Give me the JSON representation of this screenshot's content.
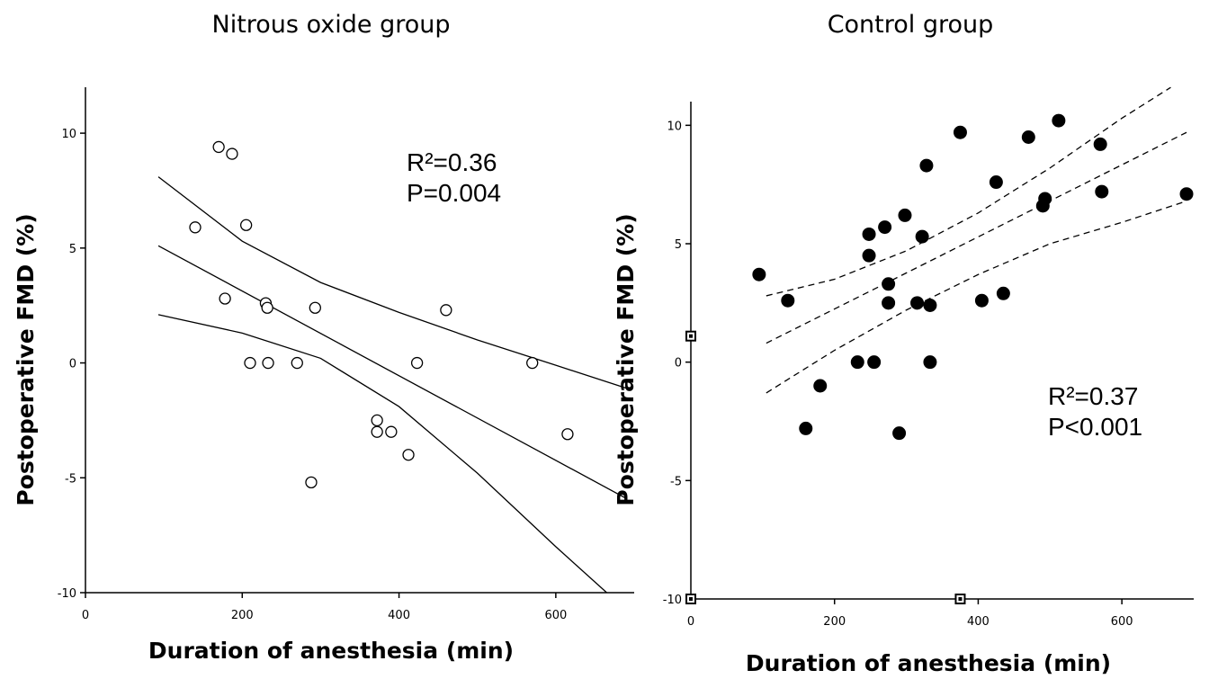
{
  "chart_data": [
    {
      "type": "scatter",
      "title": "Nitrous oxide group",
      "xlabel": "Duration of anesthesia (min)",
      "ylabel": "Postoperative FMD (%)",
      "xlim": [
        0,
        700
      ],
      "ylim": [
        -10,
        12
      ],
      "xticks": [
        "0",
        "200",
        "400",
        "600"
      ],
      "yticks": [
        "-10",
        "-5",
        "0",
        "5",
        "10"
      ],
      "marker": "open-circle",
      "grid": false,
      "points": [
        {
          "x": 170,
          "y": 9.4
        },
        {
          "x": 187,
          "y": 9.1
        },
        {
          "x": 140,
          "y": 5.9
        },
        {
          "x": 205,
          "y": 6.0
        },
        {
          "x": 178,
          "y": 2.8
        },
        {
          "x": 230,
          "y": 2.6
        },
        {
          "x": 232,
          "y": 2.4
        },
        {
          "x": 293,
          "y": 2.4
        },
        {
          "x": 460,
          "y": 2.3
        },
        {
          "x": 210,
          "y": 0.0
        },
        {
          "x": 233,
          "y": 0.0
        },
        {
          "x": 270,
          "y": 0.0
        },
        {
          "x": 423,
          "y": 0.0
        },
        {
          "x": 570,
          "y": 0.0
        },
        {
          "x": 372,
          "y": -2.5
        },
        {
          "x": 372,
          "y": -3.0
        },
        {
          "x": 390,
          "y": -3.0
        },
        {
          "x": 412,
          "y": -4.0
        },
        {
          "x": 615,
          "y": -3.1
        },
        {
          "x": 288,
          "y": -5.2
        }
      ],
      "fit": {
        "x": [
          93,
          690
        ],
        "y": [
          5.1,
          -5.9
        ]
      },
      "ci_upper": {
        "x": [
          93,
          200,
          300,
          400,
          500,
          600,
          690
        ],
        "y": [
          8.1,
          5.3,
          3.5,
          2.2,
          1.0,
          -0.1,
          -1.1
        ]
      },
      "ci_lower": {
        "x": [
          93,
          200,
          300,
          400,
          500,
          600,
          665
        ],
        "y": [
          2.1,
          1.3,
          0.2,
          -1.9,
          -4.8,
          -8.0,
          -10.0
        ]
      },
      "annotations": [
        "R²=0.36",
        "P=0.004"
      ]
    },
    {
      "type": "scatter",
      "title": "Control group",
      "xlabel": "Duration of anesthesia (min)",
      "ylabel": "Postoperative FMD (%)",
      "xlim": [
        0,
        700
      ],
      "ylim": [
        -10,
        11
      ],
      "xticks": [
        "0",
        "200",
        "400",
        "600"
      ],
      "yticks": [
        "-10",
        "-5",
        "0",
        "5",
        "10"
      ],
      "marker": "filled-circle",
      "grid": false,
      "points": [
        {
          "x": 95,
          "y": 3.7
        },
        {
          "x": 135,
          "y": 2.6
        },
        {
          "x": 160,
          "y": -2.8
        },
        {
          "x": 180,
          "y": -1.0
        },
        {
          "x": 232,
          "y": 0.0
        },
        {
          "x": 255,
          "y": 0.0
        },
        {
          "x": 248,
          "y": 5.4
        },
        {
          "x": 248,
          "y": 4.5
        },
        {
          "x": 270,
          "y": 5.7
        },
        {
          "x": 275,
          "y": 3.3
        },
        {
          "x": 275,
          "y": 2.5
        },
        {
          "x": 290,
          "y": -3.0
        },
        {
          "x": 298,
          "y": 6.2
        },
        {
          "x": 315,
          "y": 2.5
        },
        {
          "x": 322,
          "y": 5.3
        },
        {
          "x": 328,
          "y": 8.3
        },
        {
          "x": 333,
          "y": 2.4
        },
        {
          "x": 333,
          "y": 0.0
        },
        {
          "x": 375,
          "y": 9.7
        },
        {
          "x": 405,
          "y": 2.6
        },
        {
          "x": 425,
          "y": 7.6
        },
        {
          "x": 435,
          "y": 2.9
        },
        {
          "x": 470,
          "y": 9.5
        },
        {
          "x": 490,
          "y": 6.6
        },
        {
          "x": 493,
          "y": 6.9
        },
        {
          "x": 512,
          "y": 10.2
        },
        {
          "x": 570,
          "y": 9.2
        },
        {
          "x": 572,
          "y": 7.2
        },
        {
          "x": 690,
          "y": 7.1
        }
      ],
      "fit": {
        "x": [
          105,
          690
        ],
        "y": [
          0.8,
          9.7
        ]
      },
      "ci_upper": {
        "x": [
          105,
          200,
          300,
          400,
          500,
          600,
          668
        ],
        "y": [
          2.8,
          3.5,
          4.7,
          6.3,
          8.2,
          10.3,
          11.6
        ]
      },
      "ci_lower": {
        "x": [
          105,
          200,
          300,
          400,
          500,
          600,
          690
        ],
        "y": [
          -1.3,
          0.5,
          2.2,
          3.7,
          5.0,
          5.9,
          6.8
        ]
      },
      "offscale_markers": [
        {
          "x": 0,
          "y": 1.1
        },
        {
          "x": 0,
          "y": -10
        },
        {
          "x": 375,
          "y": -10
        }
      ],
      "annotations": [
        "R²=0.37",
        "P<0.001"
      ]
    }
  ]
}
